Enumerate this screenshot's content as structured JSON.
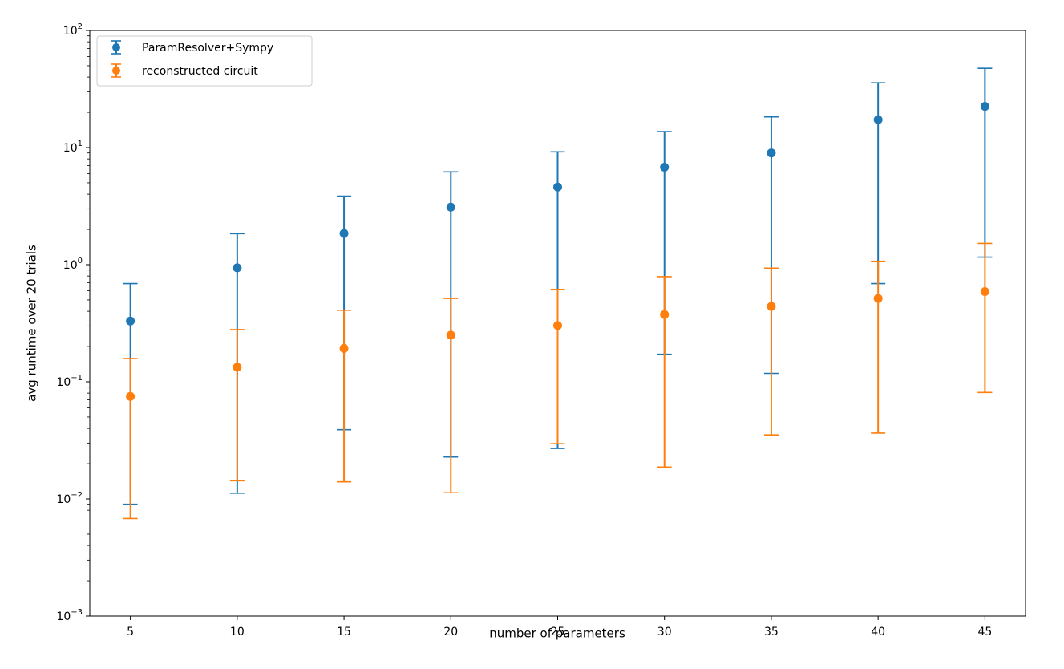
{
  "chart_data": {
    "type": "scatter",
    "title": "",
    "xlabel": "number of parameters",
    "ylabel": "avg runtime over 20 trials",
    "yscale": "log",
    "ylim": [
      0.001,
      100
    ],
    "xlim": [
      3.1,
      46.9
    ],
    "x": [
      5,
      10,
      15,
      20,
      25,
      30,
      35,
      40,
      45
    ],
    "xticks": [
      "5",
      "10",
      "15",
      "20",
      "25",
      "30",
      "35",
      "40",
      "45"
    ],
    "yticks": [
      {
        "base": "10",
        "exp": "−3",
        "value": 0.001
      },
      {
        "base": "10",
        "exp": "−2",
        "value": 0.01
      },
      {
        "base": "10",
        "exp": "−1",
        "value": 0.1
      },
      {
        "base": "10",
        "exp": "0",
        "value": 1
      },
      {
        "base": "10",
        "exp": "1",
        "value": 10
      },
      {
        "base": "10",
        "exp": "2",
        "value": 100
      }
    ],
    "grid": false,
    "legend_position": "top-left",
    "series": [
      {
        "name": "ParamResolver+Sympy",
        "color": "#1f77b4",
        "values": [
          0.33,
          0.94,
          1.85,
          3.1,
          4.6,
          6.8,
          9.0,
          17.3,
          22.5
        ],
        "err_low": [
          0.009,
          0.0112,
          0.039,
          0.0228,
          0.027,
          0.172,
          0.118,
          0.69,
          1.16
        ],
        "err_high": [
          0.69,
          1.84,
          3.85,
          6.2,
          9.2,
          13.7,
          18.3,
          35.8,
          47.5
        ]
      },
      {
        "name": "reconstructed circuit",
        "color": "#ff7f0e",
        "values": [
          0.075,
          0.133,
          0.193,
          0.25,
          0.302,
          0.375,
          0.44,
          0.515,
          0.59
        ],
        "err_low": [
          0.0068,
          0.0143,
          0.014,
          0.0113,
          0.0296,
          0.0187,
          0.0352,
          0.0365,
          0.081
        ],
        "err_high": [
          0.158,
          0.279,
          0.408,
          0.515,
          0.615,
          0.79,
          0.935,
          1.07,
          1.52
        ]
      }
    ]
  }
}
